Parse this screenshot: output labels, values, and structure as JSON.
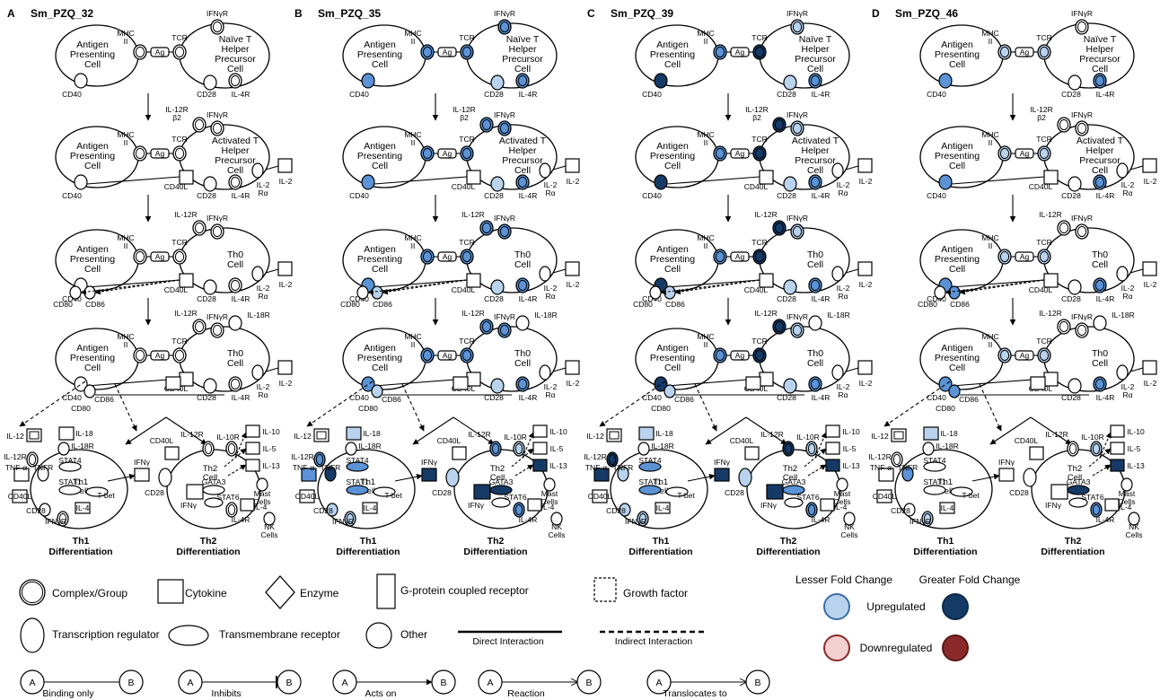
{
  "panels": [
    {
      "letter": "A",
      "title": "Sm_PZQ_32"
    },
    {
      "letter": "B",
      "title": "Sm_PZQ_35"
    },
    {
      "letter": "C",
      "title": "Sm_PZQ_39"
    },
    {
      "letter": "D",
      "title": "Sm_PZQ_46"
    }
  ],
  "nodes": {
    "apc": [
      "Antigen",
      "Presenting",
      "Cell"
    ],
    "naive": [
      "Naïve T",
      "Helper",
      "Precursor",
      "Cell"
    ],
    "activated": [
      "Activated T",
      "Helper",
      "Precursor",
      "Cell"
    ],
    "th0": [
      "Th0",
      "Cell"
    ],
    "th1cell": [
      "Th1",
      "Cell"
    ],
    "th2cell": [
      "Th2",
      "Cell"
    ],
    "mhc": [
      "MHC",
      "II"
    ],
    "ag": "Ag",
    "tcr": "TCR",
    "ifngr": "IFNγR",
    "il12rb2": [
      "IL-12R",
      "β2"
    ],
    "il12r": "IL-12R",
    "il18r": "IL-18R",
    "cd40": "CD40",
    "cd40l": "CD40L",
    "cd28": "CD28",
    "il4r": "IL-4R",
    "il2ra": [
      "IL-2",
      "Rα"
    ],
    "il2": "IL-2",
    "cd80": "CD80",
    "cd86": "CD86",
    "il12": "IL-12",
    "il18": "IL-18",
    "tnfa": "TNF-α",
    "tnfr": "TNFR",
    "stat4": "STAT4",
    "stat1": "STAT1",
    "tbet": "T-bet",
    "il4": "IL-4",
    "ifng": "IFNγ",
    "gata3": "GATA3",
    "stat6": "STAT6",
    "il10r": "IL-10R",
    "il10": "IL-10",
    "il5": "IL-5",
    "il13": "IL-13",
    "mast": [
      "Mast",
      "Cells"
    ],
    "nk": [
      "NK",
      "Cells"
    ],
    "th1diff": [
      "Th1",
      "Differentiation"
    ],
    "th2diff": [
      "Th2",
      "Differentiation"
    ]
  },
  "colors": {
    "light": "#b9d3ee",
    "medium": "#5b93d6",
    "dark": "#163a66",
    "down_light": "#f2d0d0",
    "down_dark": "#8b2a2a"
  },
  "highlights": [
    {},
    {
      "mhc": "medium",
      "tcr": "medium",
      "cd40": "medium",
      "cd28": "light",
      "il4r": "medium",
      "il12r": "medium",
      "ifngr": "medium",
      "cd86": "light",
      "tnfa": "medium",
      "tnfr": "dark",
      "stat4": "medium",
      "stat1": "medium",
      "ifng": "dark",
      "cd28b": "light",
      "ifngrb": "light",
      "il18": "light",
      "il13": "dark",
      "gata3": "dark",
      "il4rb": "medium",
      "il10r": "light"
    },
    {
      "mhc": "medium",
      "tcr": "dark",
      "cd40": "dark",
      "cd28": "light",
      "il4r": "medium",
      "il12r": "dark",
      "ifngr": "light",
      "cd86": "light",
      "tnfa": "dark",
      "tnfr": "light",
      "stat4": "medium",
      "stat1": "medium",
      "ifng": "dark",
      "cd28b": "light",
      "ifngrb": "light",
      "il18": "light",
      "il13": "dark",
      "gata3": "medium",
      "il4rb": "medium",
      "il10r": "light"
    },
    {
      "mhc": "light",
      "tcr": "light",
      "cd40": "medium",
      "cd28": "none",
      "il4r": "medium",
      "il12r": "none",
      "ifngr": "none",
      "cd86": "medium",
      "tnfa": "none",
      "tnfr": "medium",
      "stat4": "none",
      "stat1": "none",
      "ifng": "none",
      "cd28b": "none",
      "ifngrb": "light",
      "il18": "light",
      "il13": "dark",
      "gata3": "dark",
      "il4rb": "medium",
      "il10r": "light"
    }
  ],
  "legend": {
    "complex": "Complex/Group",
    "cytokine": "Cytokine",
    "enzyme": "Enzyme",
    "gpcr": "G-protein coupled receptor",
    "growth": "Growth factor",
    "transcription": "Transcription regulator",
    "transmembrane": "Transmembrane receptor",
    "other": "Other",
    "direct": "Direct Interaction",
    "indirect": "Indirect  Interaction",
    "lesser": "Lesser Fold Change",
    "greater": "Greater Fold Change",
    "upregulated": "Upregulated",
    "downregulated": "Downregulated",
    "binding": "Binding only",
    "inhibits": "Inhibits",
    "actson": "Acts on",
    "reaction": "Reaction",
    "translocates": "Translocates  to",
    "a": "A",
    "b": "B"
  }
}
